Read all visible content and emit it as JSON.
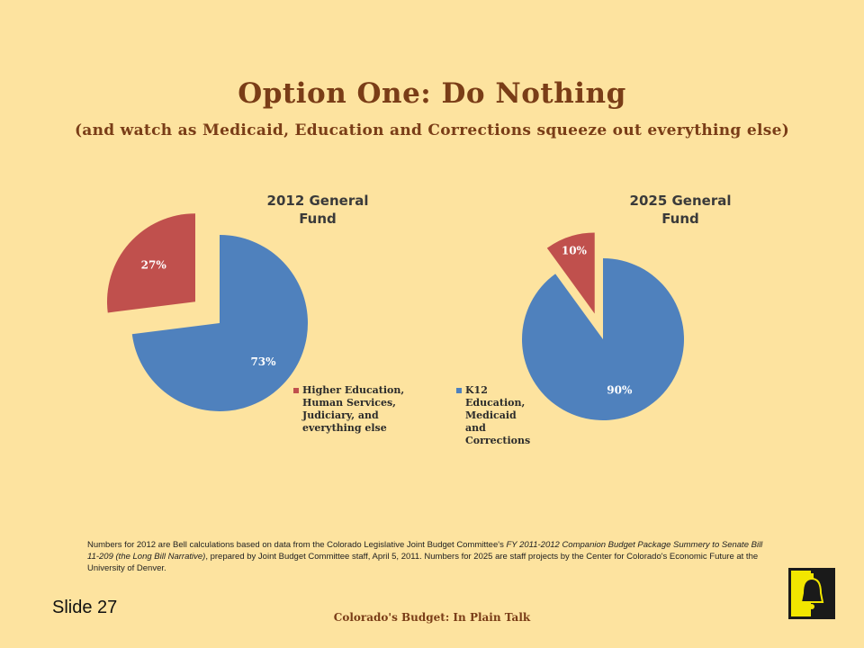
{
  "slide": {
    "title": "Option One: Do Nothing",
    "subtitle": "(and watch as Medicaid, Education and Corrections squeeze out everything else)",
    "footnote": {
      "part1": "Numbers for 2012 are Bell calculations based on data from the Colorado Legislative Joint Budget Committee's ",
      "italic": "FY 2011-2012 Companion Budget Package Summery to Senate Bill 11-209 (the Long Bill Narrative)",
      "part2": ", prepared by Joint Budget Committee staff, April 5, 2011. Numbers for 2025 are staff projects by the Center for Colorado's Economic Future at the University of Denver."
    },
    "slide_number": "Slide 27",
    "footer": "Colorado's Budget: In Plain Talk"
  },
  "colors": {
    "background": "#fde39f",
    "title": "#7a3d17",
    "series_blue": "#4f81bd",
    "series_red": "#c0504d"
  },
  "chart_data": [
    {
      "type": "pie",
      "title": [
        "2012 General",
        "Fund"
      ],
      "slices": [
        {
          "label": "27%",
          "value": 27,
          "series": "Higher Education, Human Services, Judiciary, and everything else",
          "exploded": true
        },
        {
          "label": "73%",
          "value": 73,
          "series": "K12 Education, Medicaid and Corrections",
          "exploded": false
        }
      ],
      "legend": {
        "placement": "bottom-right",
        "entries": [
          {
            "color": "#c0504d",
            "lines": [
              "Higher Education,",
              "Human Services,",
              "Judiciary, and",
              "everything else"
            ]
          }
        ]
      }
    },
    {
      "type": "pie",
      "title": [
        "2025 General",
        "Fund"
      ],
      "slices": [
        {
          "label": "10%",
          "value": 10,
          "series": "Higher Education, Human Services, Judiciary, and everything else",
          "exploded": true
        },
        {
          "label": "90%",
          "value": 90,
          "series": "K12 Education, Medicaid and Corrections",
          "exploded": false
        }
      ],
      "legend": {
        "placement": "bottom-left",
        "entries": [
          {
            "color": "#4f81bd",
            "lines": [
              "K12",
              "Education,",
              "Medicaid",
              "and",
              "Corrections"
            ]
          }
        ]
      }
    }
  ]
}
